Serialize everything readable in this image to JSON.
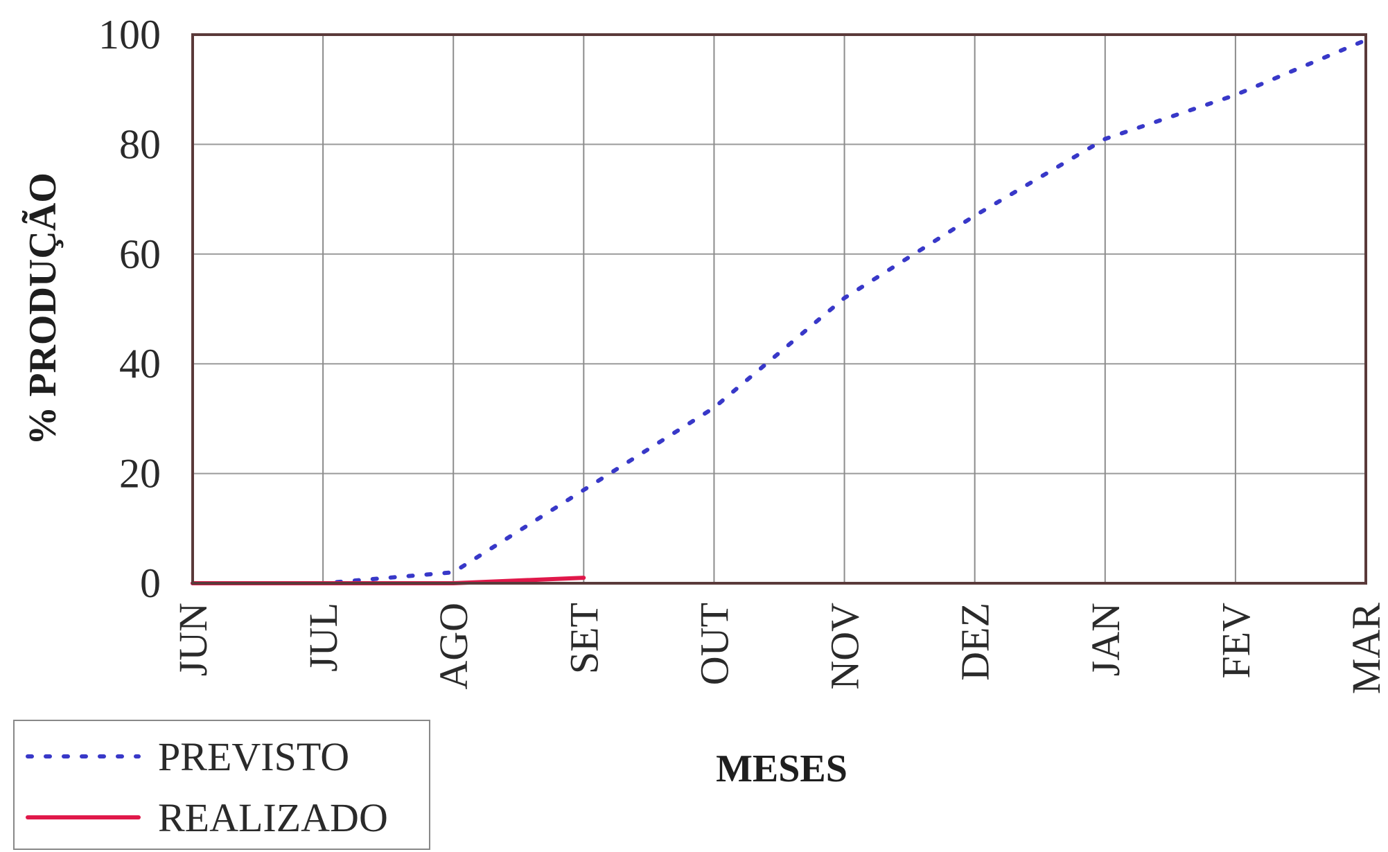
{
  "chart_data": {
    "type": "line",
    "title": "",
    "xlabel": "MESES",
    "ylabel": "% PRODUÇÃO",
    "categories": [
      "JUN",
      "JUL",
      "AGO",
      "SET",
      "OUT",
      "NOV",
      "DEZ",
      "JAN",
      "FEV",
      "MAR"
    ],
    "ylim": [
      0,
      100
    ],
    "yticks": [
      0,
      20,
      40,
      60,
      80,
      100
    ],
    "grid": true,
    "legend_position": "bottom-left",
    "series": [
      {
        "name": "PREVISTO",
        "style": "dotted",
        "color": "#3838c8",
        "values": [
          0,
          0,
          2,
          17,
          32,
          52,
          67,
          81,
          89,
          99
        ]
      },
      {
        "name": "REALIZADO",
        "style": "solid",
        "color": "#e0184a",
        "values": [
          0,
          0,
          0,
          1,
          null,
          null,
          null,
          null,
          null,
          null
        ]
      }
    ]
  },
  "colors": {
    "frame": "#5a3a3a",
    "grid_vertical": "#8c8c8c",
    "grid_horizontal": "#9a9a9a",
    "text": "#2a2a2a"
  }
}
